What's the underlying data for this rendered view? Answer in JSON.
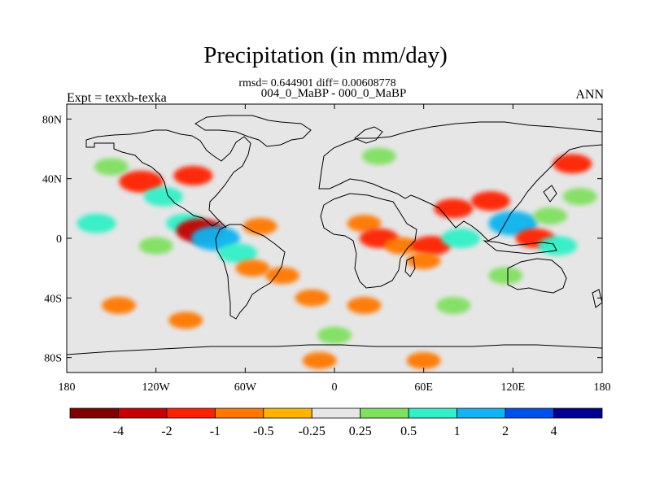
{
  "title": "Precipitation (in mm/day)",
  "stats": "rmsd= 0.644901 diff= 0.00608778",
  "comparison": "004_0_MaBP - 000_0_MaBP",
  "left_label": "Expt = texxb-texka",
  "right_label": "ANN",
  "lat_ticks": [
    "80N",
    "40N",
    "0",
    "40S",
    "80S"
  ],
  "lon_ticks": [
    "180",
    "120W",
    "60W",
    "0",
    "60E",
    "120E",
    "180"
  ],
  "colorbar": {
    "colors": [
      "#7f0000",
      "#c80000",
      "#ff2000",
      "#ff7800",
      "#ffb400",
      "#e6e6e6",
      "#80e060",
      "#30f0c8",
      "#10b4f0",
      "#0050f0",
      "#000090"
    ],
    "labels": [
      "-4",
      "-2",
      "-1",
      "-0.5",
      "-0.25",
      "0.25",
      "0.5",
      "1",
      "2",
      "4"
    ]
  },
  "chart_data": {
    "type": "heatmap",
    "title": "Precipitation (in mm/day)",
    "variable": "Precipitation difference",
    "units": "mm/day",
    "comparison": "004_0_MaBP - 000_0_MaBP",
    "season": "ANN",
    "rmsd": 0.644901,
    "diff": 0.00608778,
    "x_axis": {
      "range": [
        -180,
        180
      ],
      "ticks": [
        "180",
        "120W",
        "60W",
        "0",
        "60E",
        "120E",
        "180"
      ]
    },
    "y_axis": {
      "range": [
        -90,
        90
      ],
      "ticks": [
        "80N",
        "40N",
        "0",
        "40S",
        "80S"
      ]
    },
    "levels": [
      -4,
      -2,
      -1,
      -0.5,
      -0.25,
      0.25,
      0.5,
      1,
      2,
      4
    ],
    "features": [
      {
        "lon": -130,
        "lat": 38,
        "value": -1.5
      },
      {
        "lon": -95,
        "lat": 42,
        "value": -1
      },
      {
        "lon": -150,
        "lat": 48,
        "value": 0.5
      },
      {
        "lon": -115,
        "lat": 28,
        "value": 1
      },
      {
        "lon": -160,
        "lat": 10,
        "value": 1
      },
      {
        "lon": -100,
        "lat": 10,
        "value": 1
      },
      {
        "lon": -120,
        "lat": -5,
        "value": 0.5
      },
      {
        "lon": -90,
        "lat": 5,
        "value": -2
      },
      {
        "lon": -80,
        "lat": 0,
        "value": 2
      },
      {
        "lon": -50,
        "lat": 8,
        "value": -0.5
      },
      {
        "lon": -65,
        "lat": -10,
        "value": 1
      },
      {
        "lon": -55,
        "lat": -20,
        "value": -0.5
      },
      {
        "lon": -35,
        "lat": -25,
        "value": -0.5
      },
      {
        "lon": -15,
        "lat": -40,
        "value": -0.5
      },
      {
        "lon": -145,
        "lat": -45,
        "value": -0.5
      },
      {
        "lon": -100,
        "lat": -55,
        "value": -0.5
      },
      {
        "lon": 20,
        "lat": 10,
        "value": -0.5
      },
      {
        "lon": 30,
        "lat": 0,
        "value": -1
      },
      {
        "lon": 45,
        "lat": -5,
        "value": -0.5
      },
      {
        "lon": 65,
        "lat": -5,
        "value": -1
      },
      {
        "lon": 80,
        "lat": 20,
        "value": -1
      },
      {
        "lon": 85,
        "lat": 0,
        "value": 1
      },
      {
        "lon": 105,
        "lat": 25,
        "value": -1
      },
      {
        "lon": 120,
        "lat": 10,
        "value": 2
      },
      {
        "lon": 135,
        "lat": 0,
        "value": -1
      },
      {
        "lon": 150,
        "lat": -5,
        "value": 1
      },
      {
        "lon": 145,
        "lat": 15,
        "value": 0.5
      },
      {
        "lon": 165,
        "lat": 28,
        "value": 0.5
      },
      {
        "lon": 115,
        "lat": -25,
        "value": 0.5
      },
      {
        "lon": 60,
        "lat": -15,
        "value": -0.5
      },
      {
        "lon": 80,
        "lat": -45,
        "value": 0.5
      },
      {
        "lon": 20,
        "lat": -45,
        "value": -0.5
      },
      {
        "lon": 160,
        "lat": 50,
        "value": -1
      },
      {
        "lon": 30,
        "lat": 55,
        "value": 0.5
      },
      {
        "lon": 60,
        "lat": -82,
        "value": -0.5
      },
      {
        "lon": -10,
        "lat": -82,
        "value": -0.5
      },
      {
        "lon": 0,
        "lat": -65,
        "value": 0.5
      }
    ]
  }
}
